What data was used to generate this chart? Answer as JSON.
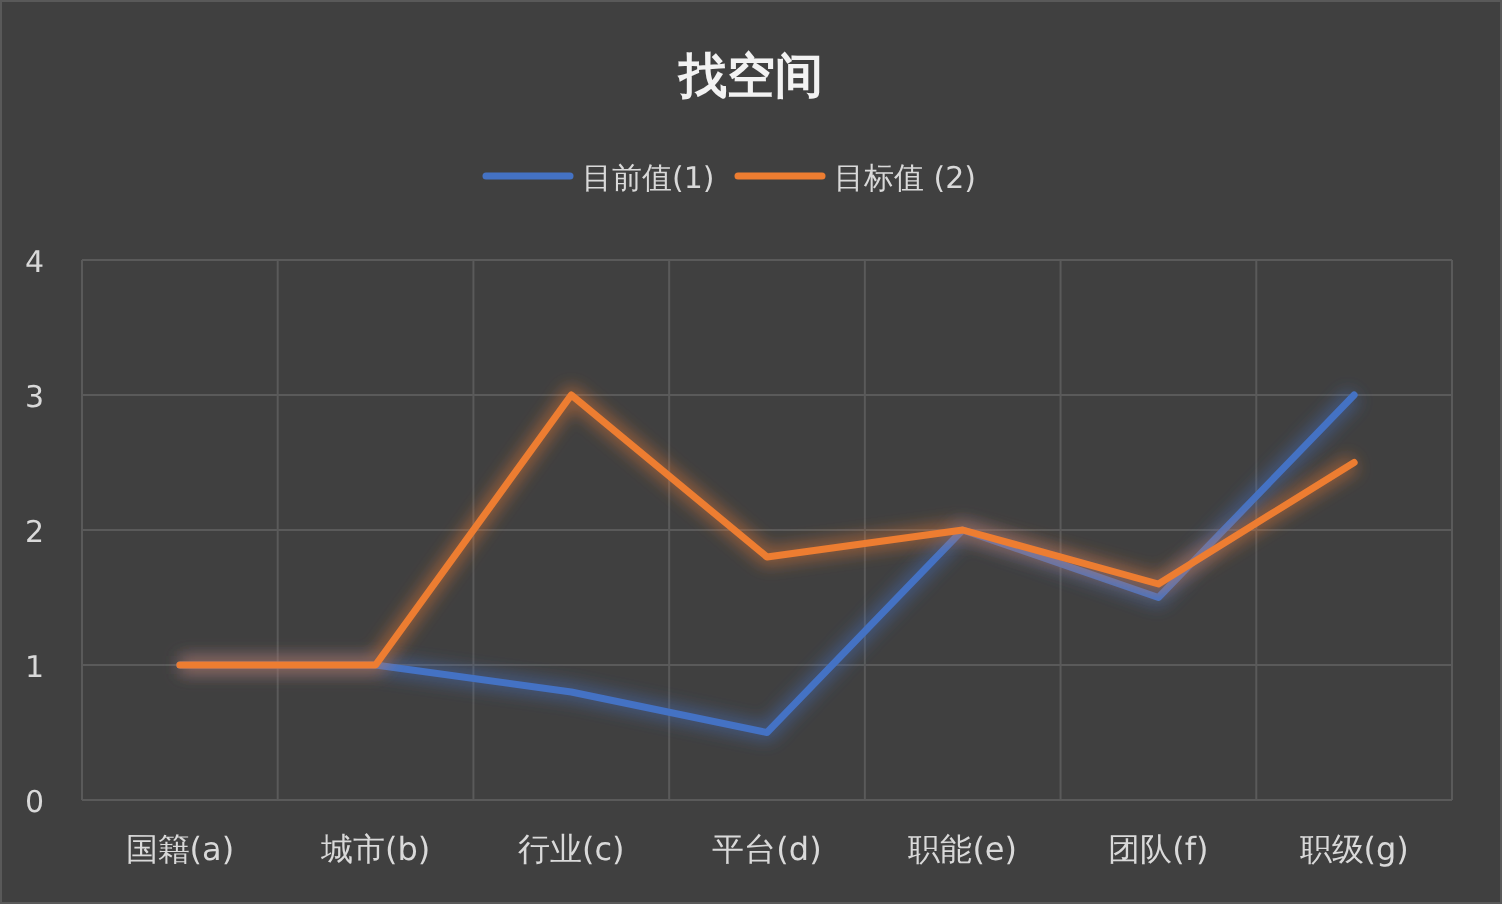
{
  "chart_data": {
    "type": "line",
    "title": "找空间",
    "categories": [
      "国籍(a)",
      "城市(b)",
      "行业(c)",
      "平台(d)",
      "职能(e)",
      "团队(f)",
      "职级(g)"
    ],
    "series": [
      {
        "name": "目前值(1)",
        "color": "#4472c4",
        "values": [
          1,
          1,
          0.8,
          0.5,
          2,
          1.5,
          3
        ]
      },
      {
        "name": "目标值 (2)",
        "color": "#ed7d31",
        "values": [
          1,
          1,
          3,
          1.8,
          2,
          1.6,
          2.5
        ]
      }
    ],
    "ylim": [
      0,
      4
    ],
    "yticks": [
      0,
      1,
      2,
      3,
      4
    ],
    "grid": true,
    "legend": "top"
  }
}
